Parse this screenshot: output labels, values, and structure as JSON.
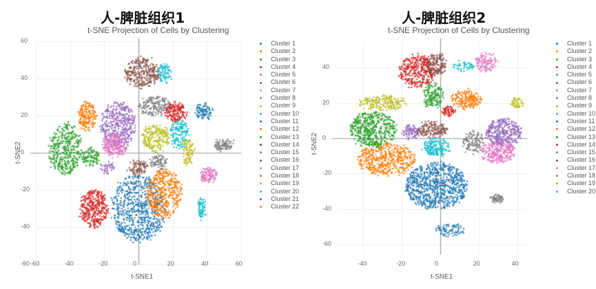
{
  "panels": [
    {
      "title": "人-脾脏组织1",
      "subtitle": "t-SNE Projection of Cells by Clustering",
      "xlabel": "t-SNE1",
      "ylabel": "t-SNE2",
      "xticks": [
        "-60",
        "-40",
        "-20",
        "0",
        "20",
        "40",
        "60"
      ],
      "yticks": [
        "60",
        "40",
        "20",
        "0",
        "-20",
        "-40",
        "-60"
      ],
      "legend": [
        "Cluster 1",
        "Cluster 2",
        "Cluster 3",
        "Cluster 4",
        "Cluster 5",
        "Cluster 6",
        "Cluster 7",
        "Cluster 8",
        "Cluster 9",
        "Cluster 10",
        "Cluster 11",
        "Cluster 12",
        "Cluster 13",
        "Cluster 14",
        "Cluster 15",
        "Cluster 16",
        "Cluster 17",
        "Cluster 18",
        "Cluster 19",
        "Cluster 20",
        "Cluster 21",
        "Cluster 22"
      ]
    },
    {
      "title": "人-脾脏组织2",
      "subtitle": "t-SNE Projection of Cells by Clustering",
      "xlabel": "t-SNE1",
      "ylabel": "t-SNE2",
      "xticks": [
        "-40",
        "-20",
        "0",
        "20",
        "40"
      ],
      "yticks": [
        "40",
        "20",
        "0",
        "-20",
        "-40",
        "-60"
      ],
      "legend": [
        "Cluster 1",
        "Cluster 2",
        "Cluster 3",
        "Cluster 4",
        "Cluster 5",
        "Cluster 6",
        "Cluster 7",
        "Cluster 8",
        "Cluster 9",
        "Cluster 10",
        "Cluster 11",
        "Cluster 12",
        "Cluster 13",
        "Cluster 14",
        "Cluster 15",
        "Cluster 16",
        "Cluster 17",
        "Cluster 18",
        "Cluster 19",
        "Cluster 20"
      ]
    }
  ],
  "palette": [
    "#1f77b4",
    "#ff7f0e",
    "#2ca02c",
    "#d62728",
    "#9467bd",
    "#8c564b",
    "#e377c2",
    "#7f7f7f",
    "#bcbd22",
    "#17becf"
  ],
  "chart_data": [
    {
      "type": "scatter",
      "title": "人-脾脏组织1",
      "subtitle": "t-SNE Projection of Cells by Clustering",
      "xlabel": "t-SNE1",
      "ylabel": "t-SNE2",
      "xlim": [
        -60,
        60
      ],
      "ylim": [
        -60,
        60
      ],
      "grid": true,
      "legend_position": "right",
      "clusters": [
        {
          "name": "Cluster 1",
          "color": "#1f77b4",
          "cx": 0,
          "cy": -30,
          "rx": 16,
          "ry": 18,
          "n": 700
        },
        {
          "name": "Cluster 2",
          "color": "#ff7f0e",
          "cx": 15,
          "cy": -22,
          "rx": 10,
          "ry": 13,
          "n": 450
        },
        {
          "name": "Cluster 3",
          "color": "#2ca02c",
          "cx": -43,
          "cy": 2,
          "rx": 9,
          "ry": 14,
          "n": 380
        },
        {
          "name": "Cluster 4",
          "color": "#d62728",
          "cx": -26,
          "cy": -30,
          "rx": 8,
          "ry": 10,
          "n": 350
        },
        {
          "name": "Cluster 5",
          "color": "#9467bd",
          "cx": -12,
          "cy": 15,
          "rx": 10,
          "ry": 13,
          "n": 400
        },
        {
          "name": "Cluster 6",
          "color": "#8c564b",
          "cx": 2,
          "cy": 43,
          "rx": 10,
          "ry": 8,
          "n": 300
        },
        {
          "name": "Cluster 7",
          "color": "#e377c2",
          "cx": -14,
          "cy": 4,
          "rx": 7,
          "ry": 6,
          "n": 220
        },
        {
          "name": "Cluster 8",
          "color": "#7f7f7f",
          "cx": 10,
          "cy": 25,
          "rx": 9,
          "ry": 5,
          "n": 180
        },
        {
          "name": "Cluster 9",
          "color": "#bcbd22",
          "cx": 10,
          "cy": 8,
          "rx": 8,
          "ry": 7,
          "n": 220
        },
        {
          "name": "Cluster 10",
          "color": "#17becf",
          "cx": 24,
          "cy": 10,
          "rx": 5,
          "ry": 8,
          "n": 150
        },
        {
          "name": "Cluster 11",
          "color": "#1f77b4",
          "cx": 38,
          "cy": 22,
          "rx": 5,
          "ry": 4,
          "n": 90
        },
        {
          "name": "Cluster 12",
          "color": "#ff7f0e",
          "cx": -30,
          "cy": 20,
          "rx": 5,
          "ry": 8,
          "n": 200
        },
        {
          "name": "Cluster 13",
          "color": "#2ca02c",
          "cx": -28,
          "cy": -2,
          "rx": 5,
          "ry": 5,
          "n": 100
        },
        {
          "name": "Cluster 14",
          "color": "#d62728",
          "cx": 22,
          "cy": 22,
          "rx": 6,
          "ry": 5,
          "n": 160
        },
        {
          "name": "Cluster 15",
          "color": "#9467bd",
          "cx": -18,
          "cy": -8,
          "rx": 4,
          "ry": 3,
          "n": 40
        },
        {
          "name": "Cluster 16",
          "color": "#8c564b",
          "cx": 0,
          "cy": -8,
          "rx": 5,
          "ry": 4,
          "n": 90
        },
        {
          "name": "Cluster 17",
          "color": "#e377c2",
          "cx": 41,
          "cy": -12,
          "rx": 5,
          "ry": 4,
          "n": 110
        },
        {
          "name": "Cluster 18",
          "color": "#7f7f7f",
          "cx": 12,
          "cy": -5,
          "rx": 5,
          "ry": 4,
          "n": 80
        },
        {
          "name": "Cluster 19",
          "color": "#bcbd22",
          "cx": 29,
          "cy": 0,
          "rx": 3,
          "ry": 8,
          "n": 90
        },
        {
          "name": "Cluster 20",
          "color": "#17becf",
          "cx": 15,
          "cy": 43,
          "rx": 4,
          "ry": 5,
          "n": 80
        },
        {
          "name": "Cluster 21",
          "color": "#7f7f7f",
          "cx": 50,
          "cy": 4,
          "rx": 6,
          "ry": 3,
          "n": 90
        },
        {
          "name": "Cluster 22",
          "color": "#17becf",
          "cx": 37,
          "cy": -30,
          "rx": 2,
          "ry": 6,
          "n": 70
        }
      ]
    },
    {
      "type": "scatter",
      "title": "人-脾脏组织2",
      "subtitle": "t-SNE Projection of Cells by Clustering",
      "xlabel": "t-SNE1",
      "ylabel": "t-SNE2",
      "xlim": [
        -50,
        50
      ],
      "ylim": [
        -60,
        50
      ],
      "grid": true,
      "legend_position": "right",
      "clusters": [
        {
          "name": "Cluster 1",
          "color": "#1f77b4",
          "cx": -2,
          "cy": -27,
          "rx": 16,
          "ry": 13,
          "n": 800
        },
        {
          "name": "Cluster 2",
          "color": "#ff7f0e",
          "cx": -28,
          "cy": -12,
          "rx": 15,
          "ry": 9,
          "n": 500
        },
        {
          "name": "Cluster 3",
          "color": "#2ca02c",
          "cx": -35,
          "cy": 5,
          "rx": 12,
          "ry": 10,
          "n": 500
        },
        {
          "name": "Cluster 4",
          "color": "#d62728",
          "cx": -12,
          "cy": 38,
          "rx": 9,
          "ry": 9,
          "n": 350
        },
        {
          "name": "Cluster 5",
          "color": "#9467bd",
          "cx": 33,
          "cy": 3,
          "rx": 9,
          "ry": 8,
          "n": 350
        },
        {
          "name": "Cluster 6",
          "color": "#8c564b",
          "cx": -2,
          "cy": 42,
          "rx": 5,
          "ry": 6,
          "n": 150
        },
        {
          "name": "Cluster 7",
          "color": "#e377c2",
          "cx": 30,
          "cy": -8,
          "rx": 9,
          "ry": 6,
          "n": 250
        },
        {
          "name": "Cluster 8",
          "color": "#7f7f7f",
          "cx": 17,
          "cy": -2,
          "rx": 5,
          "ry": 6,
          "n": 120
        },
        {
          "name": "Cluster 9",
          "color": "#bcbd22",
          "cx": -30,
          "cy": 20,
          "rx": 12,
          "ry": 4,
          "n": 200
        },
        {
          "name": "Cluster 10",
          "color": "#17becf",
          "cx": -2,
          "cy": -5,
          "rx": 7,
          "ry": 5,
          "n": 180
        },
        {
          "name": "Cluster 11",
          "color": "#1f77b4",
          "cx": 5,
          "cy": -52,
          "rx": 8,
          "ry": 3,
          "n": 80
        },
        {
          "name": "Cluster 12",
          "color": "#ff7f0e",
          "cx": 14,
          "cy": 22,
          "rx": 8,
          "ry": 5,
          "n": 200
        },
        {
          "name": "Cluster 13",
          "color": "#2ca02c",
          "cx": -4,
          "cy": 24,
          "rx": 5,
          "ry": 7,
          "n": 150
        },
        {
          "name": "Cluster 14",
          "color": "#d62728",
          "cx": 4,
          "cy": 15,
          "rx": 3,
          "ry": 3,
          "n": 60
        },
        {
          "name": "Cluster 15",
          "color": "#9467bd",
          "cx": -15,
          "cy": 4,
          "rx": 5,
          "ry": 4,
          "n": 90
        },
        {
          "name": "Cluster 16",
          "color": "#8c564b",
          "cx": -4,
          "cy": 5,
          "rx": 8,
          "ry": 4,
          "n": 160
        },
        {
          "name": "Cluster 17",
          "color": "#e377c2",
          "cx": 24,
          "cy": 43,
          "rx": 6,
          "ry": 5,
          "n": 120
        },
        {
          "name": "Cluster 18",
          "color": "#7f7f7f",
          "cx": 30,
          "cy": -34,
          "rx": 3,
          "ry": 2,
          "n": 60
        },
        {
          "name": "Cluster 19",
          "color": "#bcbd22",
          "cx": 40,
          "cy": 20,
          "rx": 3,
          "ry": 3,
          "n": 50
        },
        {
          "name": "Cluster 20",
          "color": "#17becf",
          "cx": 12,
          "cy": 41,
          "rx": 5,
          "ry": 3,
          "n": 50
        }
      ]
    }
  ]
}
